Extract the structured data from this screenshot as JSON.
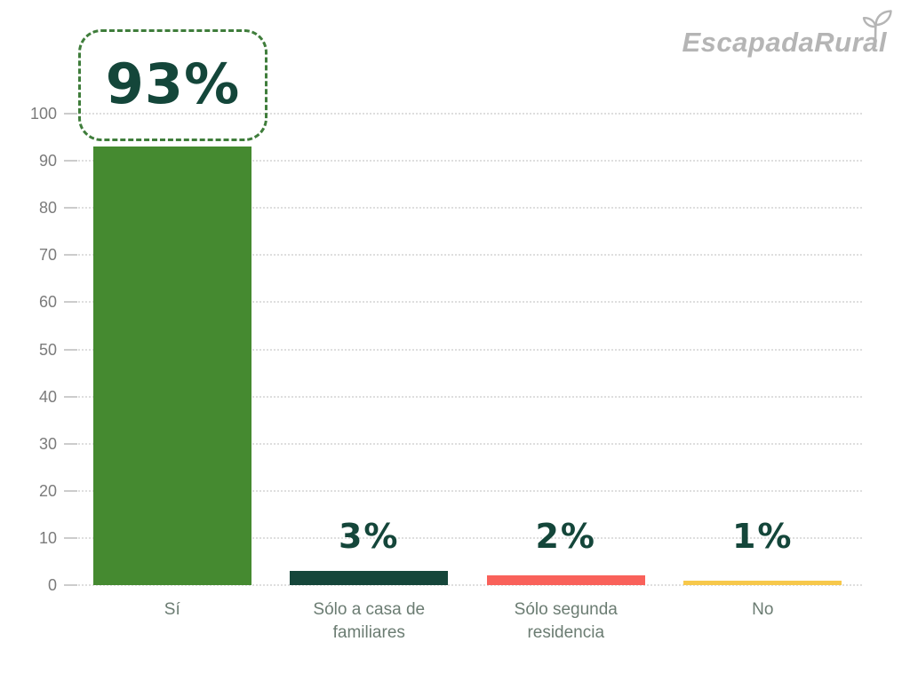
{
  "logo": {
    "text": "EscapadaRural",
    "icon": "sprout-leaf-icon",
    "color": "#b5b5b5"
  },
  "chart_data": {
    "type": "bar",
    "title": "",
    "xlabel": "",
    "ylabel": "",
    "categories": [
      "Sí",
      "Sólo a casa de familiares",
      "Sólo segunda residencia",
      "No"
    ],
    "values": [
      93,
      3,
      2,
      1
    ],
    "value_labels": [
      "93%",
      "3%",
      "2%",
      "1%"
    ],
    "bar_colors": [
      "#458a30",
      "#15463a",
      "#f9615a",
      "#f7c84b"
    ],
    "value_label_color": "#14463a",
    "highlight_box": {
      "value": "93%",
      "style": "dashed-rounded",
      "border_color": "#3f7d3b"
    },
    "ylim": [
      0,
      100
    ],
    "yticks": [
      0,
      10,
      20,
      30,
      40,
      50,
      60,
      70,
      80,
      90,
      100
    ],
    "grid": "horizontal-dotted",
    "legend": "none"
  }
}
